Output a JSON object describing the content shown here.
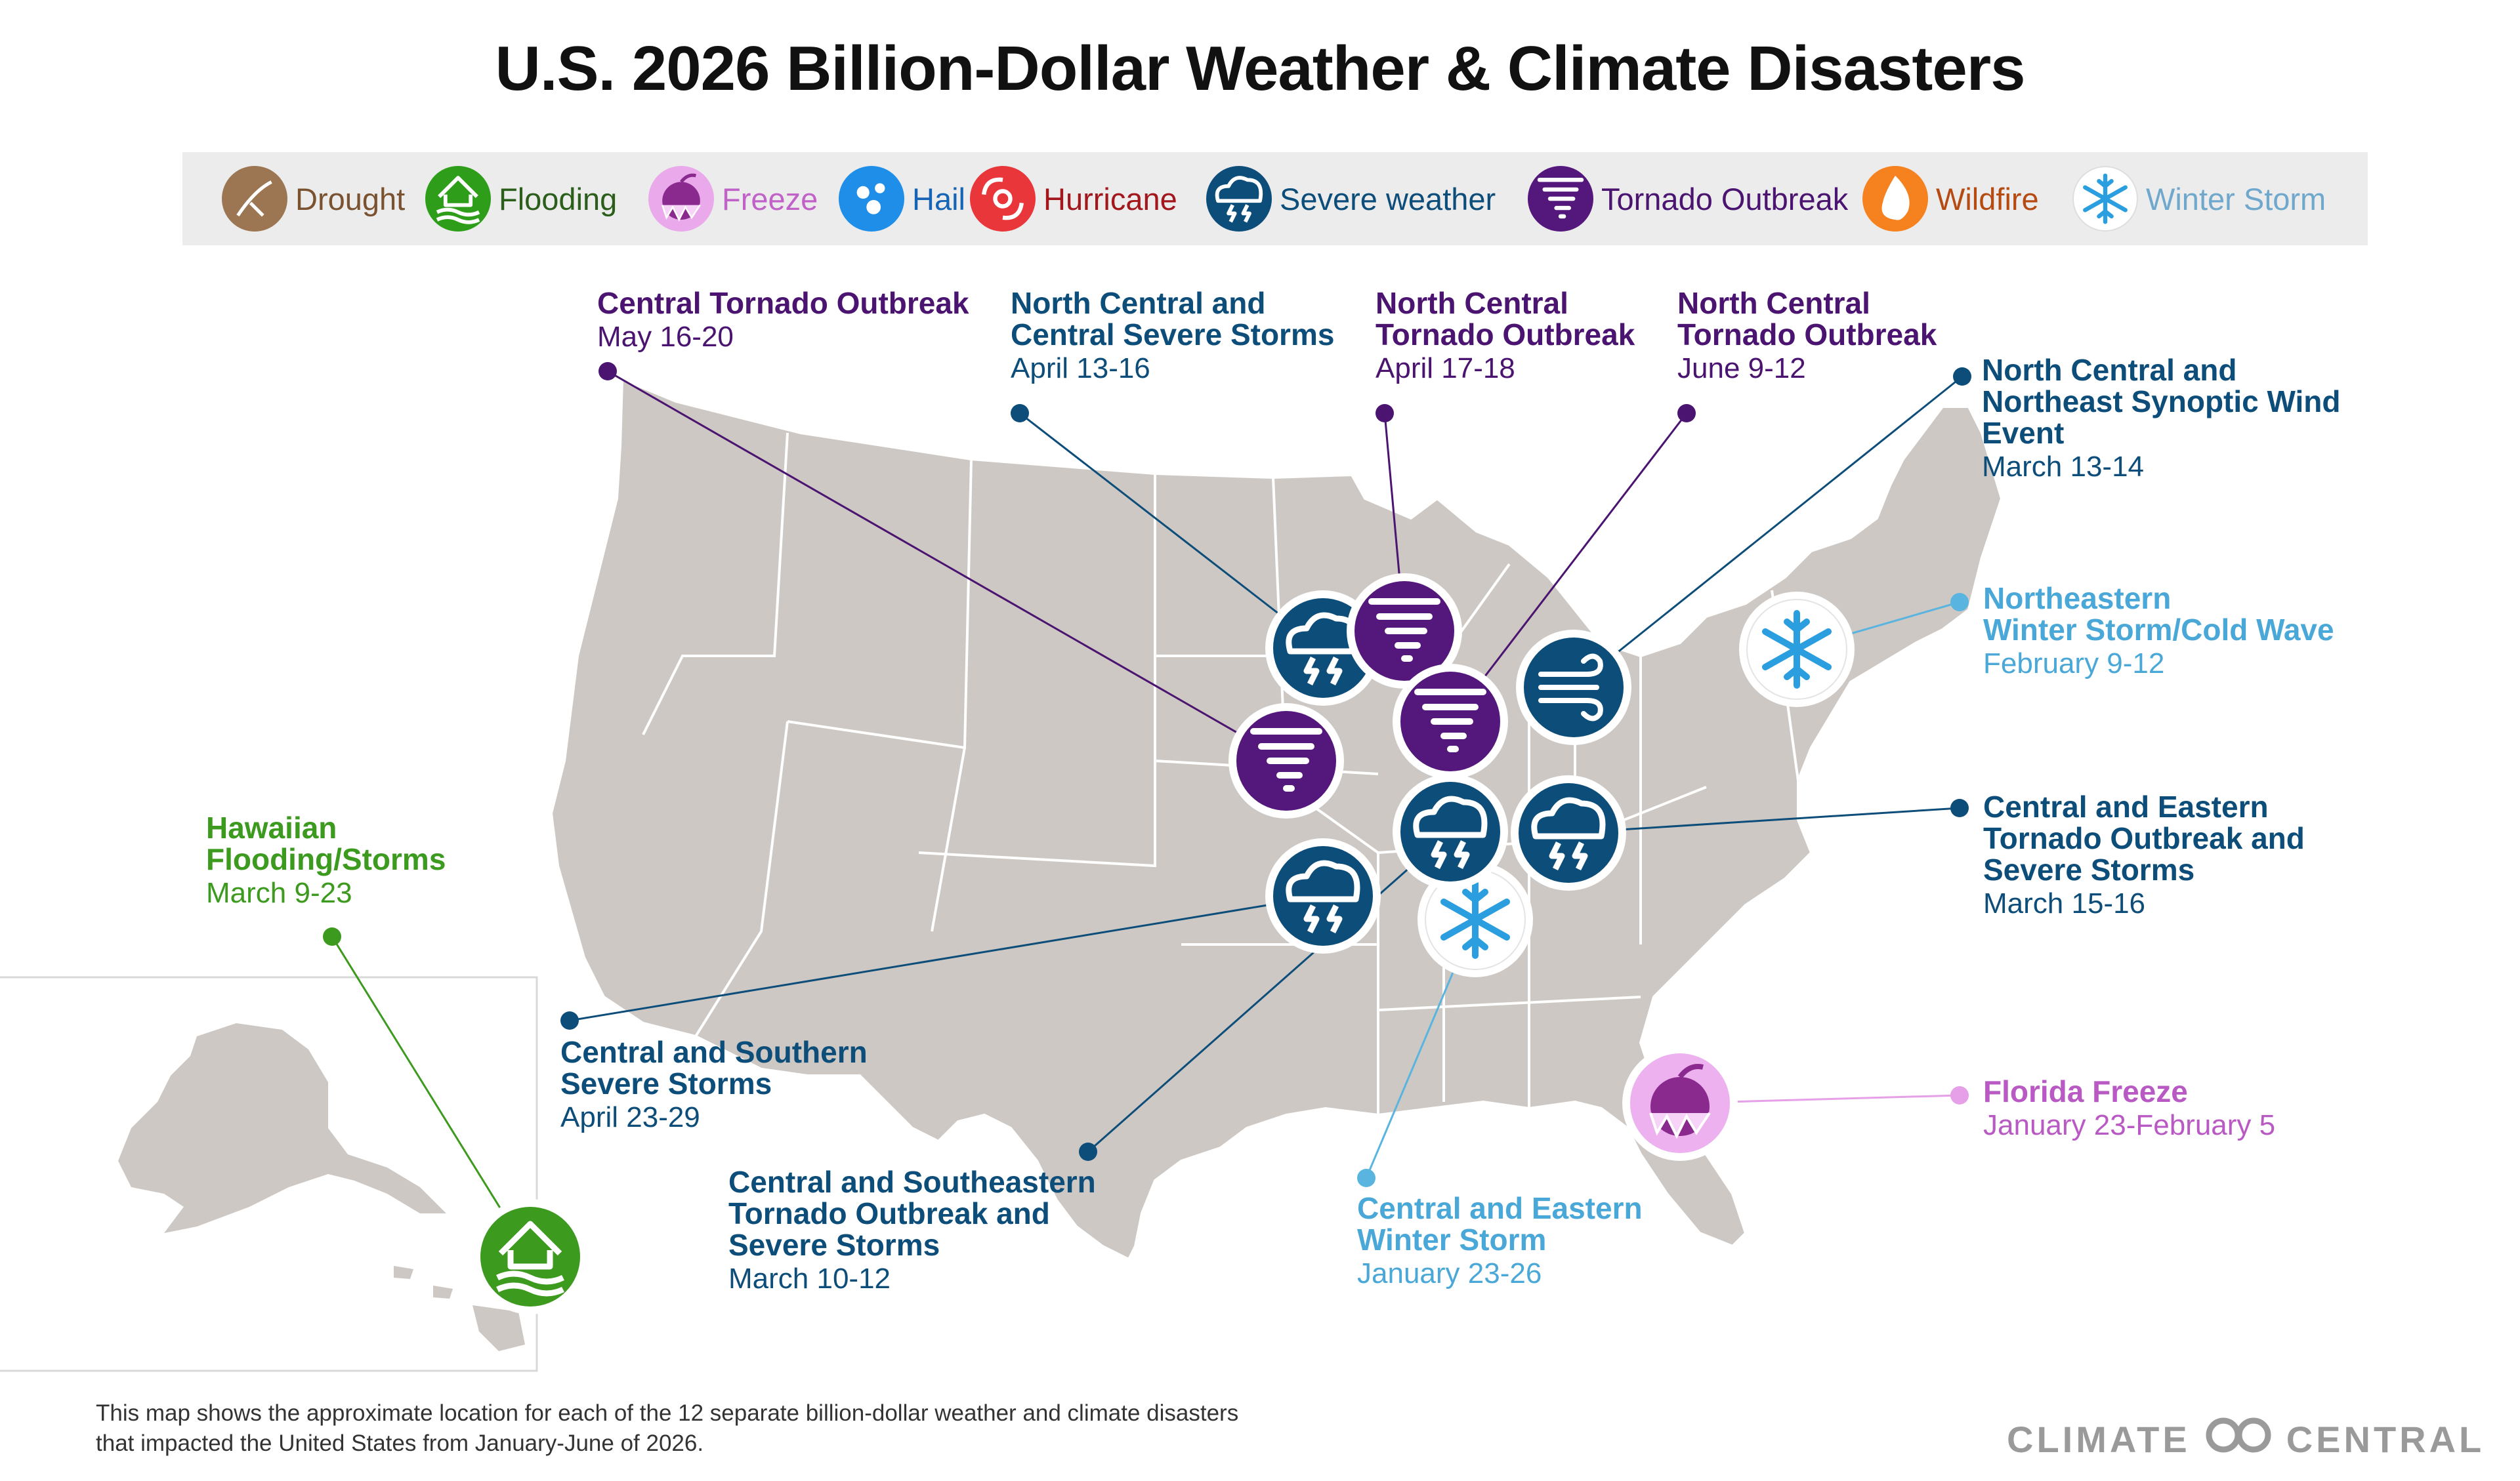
{
  "title": "U.S. 2026 Billion-Dollar Weather & Climate Disasters",
  "legend": [
    {
      "label": "Drought",
      "icon": "drought-icon",
      "color": "#9c7652",
      "text_color": "#7a5230"
    },
    {
      "label": "Flooding",
      "icon": "flooding-icon",
      "color": "#2e9e1a",
      "text_color": "#2b5e1a"
    },
    {
      "label": "Freeze",
      "icon": "freeze-icon",
      "color": "#e9a9ea",
      "text_color": "#c062c8"
    },
    {
      "label": "Hail",
      "icon": "hail-icon",
      "color": "#1f8ee8",
      "text_color": "#1664b5"
    },
    {
      "label": "Hurricane",
      "icon": "hurricane-icon",
      "color": "#e8363a",
      "text_color": "#a3171c"
    },
    {
      "label": "Severe weather",
      "icon": "severe-weather-icon",
      "color": "#0d4d7a",
      "text_color": "#0d4d7a"
    },
    {
      "label": "Tornado Outbreak",
      "icon": "tornado-icon",
      "color": "#54177c",
      "text_color": "#4a1470"
    },
    {
      "label": "Wildfire",
      "icon": "wildfire-icon",
      "color": "#f5821f",
      "text_color": "#b54a12"
    },
    {
      "label": "Winter Storm",
      "icon": "winter-storm-icon",
      "color": "#ffffff",
      "text_color": "#6fa8cc"
    }
  ],
  "events": [
    {
      "title": "Central Tornado Outbreak",
      "dates": "May 16-20",
      "type": "Tornado Outbreak",
      "color": "#4a1470"
    },
    {
      "title": "North Central and\nCentral Severe Storms",
      "dates": "April 13-16",
      "type": "Severe weather",
      "color": "#0d4d7a"
    },
    {
      "title": "North Central\nTornado Outbreak",
      "dates": "April 17-18",
      "type": "Tornado Outbreak",
      "color": "#4a1470"
    },
    {
      "title": "North Central\nTornado Outbreak",
      "dates": "June 9-12",
      "type": "Tornado Outbreak",
      "color": "#4a1470"
    },
    {
      "title": "North Central and\nNortheast Synoptic Wind\nEvent",
      "dates": "March 13-14",
      "type": "Severe weather",
      "color": "#0d4d7a"
    },
    {
      "title": "Northeastern\nWinter Storm/Cold Wave",
      "dates": "February 9-12",
      "type": "Winter Storm",
      "color": "#4aa8d8"
    },
    {
      "title": "Central and Eastern\nTornado Outbreak and\nSevere Storms",
      "dates": "March 15-16",
      "type": "Severe weather",
      "color": "#0d4d7a"
    },
    {
      "title": "Florida Freeze",
      "dates": "January 23-February 5",
      "type": "Freeze",
      "color": "#b95ac4"
    },
    {
      "title": "Central and Eastern\nWinter Storm",
      "dates": "January 23-26",
      "type": "Winter Storm",
      "color": "#4aa8d8"
    },
    {
      "title": "Central and Southeastern\nTornado Outbreak and\nSevere Storms",
      "dates": "March 10-12",
      "type": "Severe weather",
      "color": "#0d4d7a"
    },
    {
      "title": "Central and Southern\nSevere Storms",
      "dates": "April 23-29",
      "type": "Severe weather",
      "color": "#0d4d7a"
    },
    {
      "title": "Hawaiian\nFlooding/Storms",
      "dates": "March 9-23",
      "type": "Flooding",
      "color": "#3c9a1e"
    }
  ],
  "footer": "This map shows the approximate location for each of the 12 separate billion-dollar weather and climate disasters\nthat impacted the United States from January-June of 2026.",
  "brand": {
    "left": "CLIMATE",
    "right": "CENTRAL",
    "icon": "climate-central-logo-icon"
  },
  "colors": {
    "land": "#cdc8c3",
    "state_border": "#ffffff",
    "leader_severe": "#0d4d7a",
    "leader_tornado": "#4a1470",
    "leader_winter": "#5ab4e0",
    "leader_freeze": "#e6a0e8",
    "leader_flood": "#3c9a1e"
  }
}
